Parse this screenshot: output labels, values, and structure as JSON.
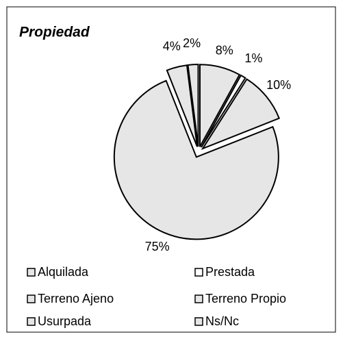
{
  "chart_data": {
    "type": "pie",
    "title": "Propiedad",
    "categories": [
      "Alquilada",
      "Prestada",
      "Terreno Ajeno",
      "Terreno Propio",
      "Usurpada",
      "Ns/Nc"
    ],
    "values": [
      8,
      1,
      10,
      75,
      4,
      2
    ],
    "value_labels": [
      "8%",
      "1%",
      "10%",
      "75%",
      "4%",
      "2%"
    ],
    "colors": [
      "#e6e6e6",
      "#ffffff",
      "#e6e6e6",
      "#e6e6e6",
      "#e6e6e6",
      "#e6e6e6"
    ],
    "legend": "bottom"
  }
}
